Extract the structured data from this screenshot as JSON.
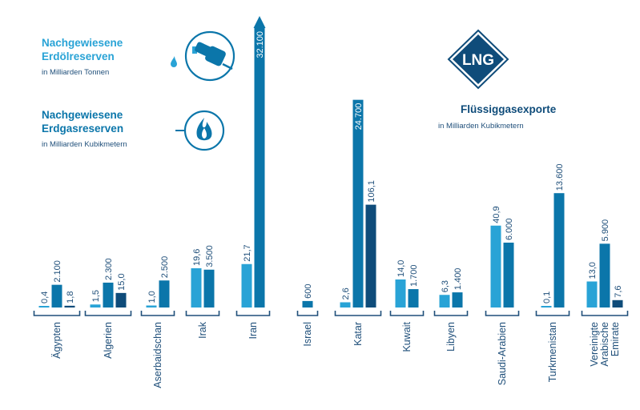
{
  "colors": {
    "oil": "#29a3d6",
    "gas": "#0b76aa",
    "lng": "#0f4c7a",
    "text": "#1f4f7a",
    "white": "#ffffff"
  },
  "legend": {
    "oil": {
      "title_line1": "Nachgewiesene",
      "title_line2": "Erdölreserven",
      "sub": "in Milliarden Tonnen",
      "icon": "fuel-pump-icon"
    },
    "gas": {
      "title_line1": "Nachgewiesene",
      "title_line2": "Erdgasreserven",
      "sub": "in Milliarden Kubikmetern",
      "icon": "flame-icon"
    },
    "lng": {
      "badge": "LNG",
      "title": "Flüssiggasexporte",
      "sub": "in Milliarden Kubikmetern",
      "icon": "lng-diamond-icon"
    }
  },
  "chart_data": {
    "type": "bar",
    "categories": [
      [
        "Ägypten"
      ],
      [
        "Algerien"
      ],
      [
        "Aserbaidschan"
      ],
      [
        "Irak"
      ],
      [
        "Iran"
      ],
      [
        "Israel"
      ],
      [
        "Katar"
      ],
      [
        "Kuwait"
      ],
      [
        "Libyen"
      ],
      [
        "Saudi-Arabien"
      ],
      [
        "Turkmenistan"
      ],
      [
        "Vereinigte",
        "Arabische",
        "Emirate"
      ]
    ],
    "series": [
      {
        "name": "Nachgewiesene Erdölreserven",
        "values": [
          0.4,
          1.5,
          1.0,
          19.6,
          21.7,
          null,
          2.6,
          14.0,
          6.3,
          40.9,
          0.1,
          13.0
        ],
        "labels": [
          "0,4",
          "1,5",
          "1,0",
          "19,6",
          "21,7",
          "",
          "2,6",
          "14,0",
          "6,3",
          "40,9",
          "0,1",
          "13,0"
        ]
      },
      {
        "name": "Nachgewiesene Erdgasreserven",
        "values": [
          2100,
          2300,
          2500,
          3500,
          32100,
          600,
          24700,
          1700,
          1400,
          6000,
          13600,
          5900
        ],
        "labels": [
          "2.100",
          "2.300",
          "2.500",
          "3.500",
          "32.100",
          "600",
          "24.700",
          "1.700",
          "1.400",
          "6.000",
          "13.600",
          "5.900"
        ]
      },
      {
        "name": "Flüssiggasexporte",
        "values": [
          1.8,
          15.0,
          null,
          null,
          null,
          null,
          106.1,
          null,
          null,
          null,
          null,
          7.6
        ],
        "labels": [
          "1,8",
          "15,0",
          "",
          "",
          "",
          "",
          "106,1",
          "",
          "",
          "",
          "",
          "7,6"
        ]
      }
    ],
    "notes": "Iran gas bar is truncated with an arrow; bar heights are not drawn to a common scale."
  }
}
